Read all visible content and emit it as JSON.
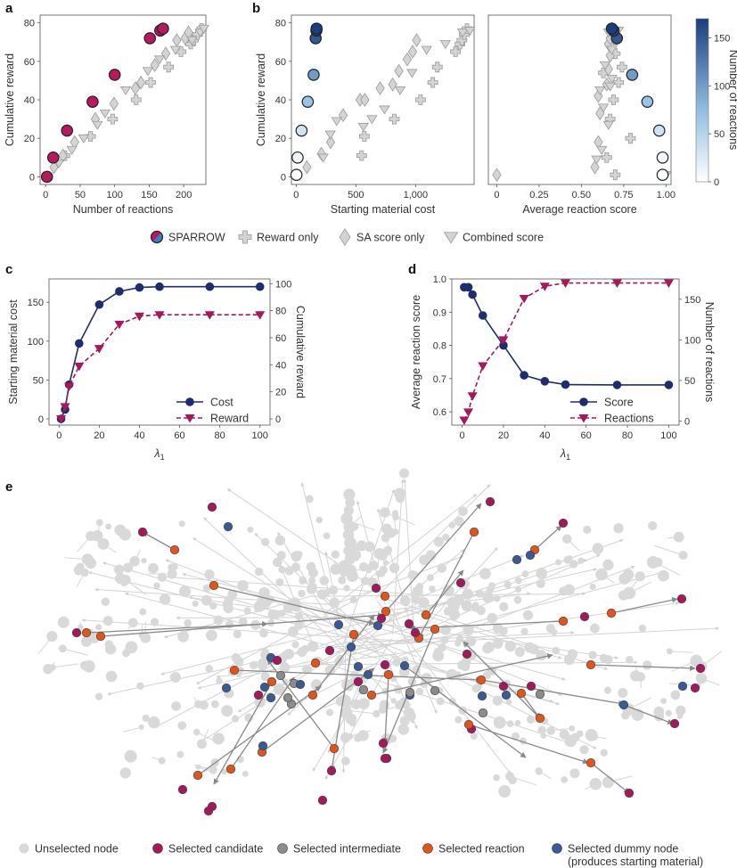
{
  "panel_labels": {
    "a": "a",
    "b": "b",
    "c": "c",
    "d": "d",
    "e": "e"
  },
  "colors": {
    "sparrow": "#b5195e",
    "sparrow_alt": "#2c6fb0",
    "baseline_fill": "#d4d4d4",
    "baseline_edge": "#9a9a9a",
    "navy": "#1e2d6b",
    "magenta": "#a3195b",
    "unselected": "#d9d9d9",
    "candidate": "#a3195b",
    "intermediate": "#8c8c8c",
    "reaction": "#e0541e",
    "dummy": "#3b5a94"
  },
  "legend_top": {
    "sparrow": "SPARROW",
    "reward_only": "Reward only",
    "sa_only": "SA score only",
    "combined": "Combined score"
  },
  "colorbar": {
    "label": "Number of reactions",
    "ticks": [
      "0",
      "50",
      "100",
      "150"
    ],
    "min": 0,
    "max": 170
  },
  "chart_data": [
    {
      "panel": "a",
      "type": "scatter",
      "xlabel": "Number of reactions",
      "ylabel": "Cumulative reward",
      "xlim": [
        -8,
        232
      ],
      "ylim": [
        -4,
        84
      ],
      "xticks": [
        0,
        50,
        100,
        150,
        200
      ],
      "xticklabels": [
        "0",
        "50",
        "100",
        "150",
        "200"
      ],
      "yticks": [
        0,
        20,
        40,
        60,
        80
      ],
      "yticklabels": [
        "0",
        "20",
        "40",
        "60",
        "80"
      ],
      "series": [
        {
          "name": "SPARROW",
          "marker": "circle",
          "points": [
            [
              2,
              0
            ],
            [
              11,
              10
            ],
            [
              31,
              24
            ],
            [
              68,
              39
            ],
            [
              100,
              53
            ],
            [
              151,
              72
            ],
            [
              166,
              76
            ],
            [
              170,
              77
            ]
          ]
        },
        {
          "name": "Reward only",
          "marker": "plus",
          "points": [
            [
              28,
              11
            ],
            [
              65,
              21
            ],
            [
              97,
              30
            ],
            [
              131,
              40
            ],
            [
              152,
              49
            ],
            [
              178,
              57
            ],
            [
              196,
              65
            ],
            [
              210,
              69
            ],
            [
              214,
              71
            ],
            [
              220,
              74
            ],
            [
              226,
              77
            ]
          ]
        },
        {
          "name": "SA score only",
          "marker": "diamond",
          "points": [
            [
              12,
              5
            ],
            [
              25,
              11
            ],
            [
              42,
              18
            ],
            [
              72,
              30
            ],
            [
              99,
              38
            ],
            [
              130,
              46
            ],
            [
              138,
              49
            ],
            [
              158,
              58
            ],
            [
              174,
              64
            ],
            [
              190,
              71
            ],
            [
              202,
              72
            ],
            [
              207,
              75
            ]
          ]
        },
        {
          "name": "Combined score",
          "marker": "triangle",
          "points": [
            [
              19,
              7
            ],
            [
              38,
              14
            ],
            [
              55,
              20
            ],
            [
              75,
              27
            ],
            [
              86,
              33
            ],
            [
              116,
              45
            ],
            [
              148,
              55
            ],
            [
              165,
              61
            ],
            [
              188,
              66
            ],
            [
              212,
              71
            ],
            [
              224,
              75
            ],
            [
              229,
              77
            ]
          ]
        }
      ]
    },
    {
      "panel": "b-left",
      "type": "scatter",
      "xlabel": "Starting material cost",
      "ylabel": "Cumulative reward",
      "xlim": [
        -40,
        1490
      ],
      "ylim": [
        -4,
        84
      ],
      "xticks": [
        0,
        500,
        1000
      ],
      "xticklabels": [
        "0",
        "500",
        "1,000"
      ],
      "yticks": [
        0,
        20,
        40,
        60,
        80
      ],
      "yticklabels": [
        "0",
        "20",
        "40",
        "60",
        "80"
      ],
      "series": [
        {
          "name": "SPARROW",
          "marker": "circle",
          "colored_by": "number of reactions",
          "points": [
            [
              2,
              1,
              2
            ],
            [
              12,
              10,
              11
            ],
            [
              45,
              24,
              31
            ],
            [
              97,
              39,
              68
            ],
            [
              146,
              53,
              100
            ],
            [
              163,
              72,
              151
            ],
            [
              169,
              76,
              166
            ],
            [
              171,
              77,
              170
            ]
          ]
        },
        {
          "name": "Reward only",
          "marker": "plus",
          "points": [
            [
              548,
              11
            ],
            [
              571,
              21
            ],
            [
              822,
              30
            ],
            [
              1041,
              40
            ],
            [
              1144,
              49
            ],
            [
              1182,
              57
            ],
            [
              1334,
              65
            ],
            [
              1372,
              69
            ],
            [
              1388,
              71
            ],
            [
              1408,
              74
            ],
            [
              1430,
              77
            ]
          ]
        },
        {
          "name": "SA score only",
          "marker": "diamond",
          "points": [
            [
              90,
              5
            ],
            [
              211,
              12
            ],
            [
              288,
              18
            ],
            [
              393,
              32
            ],
            [
              535,
              40
            ],
            [
              575,
              40
            ],
            [
              703,
              46
            ],
            [
              808,
              48
            ],
            [
              860,
              55
            ],
            [
              930,
              61
            ],
            [
              975,
              65
            ],
            [
              1009,
              71
            ]
          ]
        },
        {
          "name": "Combined score",
          "marker": "triangle",
          "points": [
            [
              226,
              10
            ],
            [
              286,
              22
            ],
            [
              339,
              29
            ],
            [
              563,
              26
            ],
            [
              634,
              30
            ],
            [
              740,
              35
            ],
            [
              870,
              45
            ],
            [
              970,
              54
            ],
            [
              1092,
              66
            ],
            [
              1250,
              69
            ],
            [
              1394,
              75
            ],
            [
              1455,
              76
            ]
          ]
        }
      ]
    },
    {
      "panel": "b-right",
      "type": "scatter",
      "xlabel": "Average reaction score",
      "ylabel": "",
      "xlim": [
        -0.05,
        1.03
      ],
      "ylim": [
        -4,
        84
      ],
      "xticks": [
        0,
        0.25,
        0.5,
        0.75,
        1.0
      ],
      "xticklabels": [
        "0",
        "0.25",
        "0.50",
        "0.75",
        "1.00"
      ],
      "yticks": [],
      "series": [
        {
          "name": "SPARROW",
          "marker": "circle",
          "colored_by": "number of reactions",
          "points": [
            [
              0.98,
              1,
              2
            ],
            [
              0.98,
              10,
              11
            ],
            [
              0.96,
              24,
              31
            ],
            [
              0.89,
              39,
              68
            ],
            [
              0.8,
              53,
              100
            ],
            [
              0.71,
              72,
              151
            ],
            [
              0.69,
              76,
              166
            ],
            [
              0.68,
              77,
              170
            ]
          ]
        },
        {
          "name": "Reward only",
          "marker": "plus",
          "points": [
            [
              0.7,
              1
            ],
            [
              0.65,
              10
            ],
            [
              0.79,
              20
            ],
            [
              0.67,
              30
            ],
            [
              0.69,
              40
            ],
            [
              0.72,
              49
            ],
            [
              0.63,
              54
            ],
            [
              0.74,
              57
            ],
            [
              0.7,
              64
            ],
            [
              0.7,
              71
            ],
            [
              0.68,
              77
            ]
          ]
        },
        {
          "name": "SA score only",
          "marker": "diamond",
          "points": [
            [
              0,
              1
            ],
            [
              0.58,
              5
            ],
            [
              0.6,
              18
            ],
            [
              0.61,
              33
            ],
            [
              0.6,
              42
            ],
            [
              0.65,
              48
            ],
            [
              0.66,
              56
            ],
            [
              0.67,
              63
            ],
            [
              0.66,
              69
            ],
            [
              0.67,
              72
            ],
            [
              0.7,
              75
            ],
            [
              0.68,
              77
            ]
          ]
        },
        {
          "name": "Combined score",
          "marker": "triangle",
          "points": [
            [
              0.59,
              9
            ],
            [
              0.62,
              14
            ],
            [
              0.66,
              27
            ],
            [
              0.63,
              36
            ],
            [
              0.61,
              45
            ],
            [
              0.67,
              47
            ],
            [
              0.68,
              51
            ],
            [
              0.64,
              58
            ],
            [
              0.68,
              66
            ],
            [
              0.66,
              75
            ],
            [
              0.72,
              76
            ],
            [
              1.0,
              1
            ]
          ]
        }
      ]
    },
    {
      "panel": "c",
      "type": "line",
      "xlabel": "λ1",
      "ylabel_left": "Starting material cost",
      "ylabel_right": "Cumulative reward",
      "xlim": [
        -5,
        105
      ],
      "y_left_lim": [
        -8,
        180
      ],
      "y_right_lim": [
        -4.6,
        103.5
      ],
      "xticks": [
        0,
        20,
        40,
        60,
        80,
        100
      ],
      "xticklabels": [
        "0",
        "20",
        "40",
        "60",
        "80",
        "100"
      ],
      "y_left_ticks": [
        0,
        50,
        100,
        150
      ],
      "y_left_ticklabels": [
        "0",
        "50",
        "100",
        "150"
      ],
      "y_right_ticks": [
        0,
        20,
        40,
        60,
        80,
        100
      ],
      "y_right_ticklabels": [
        "0",
        "20",
        "40",
        "60",
        "80",
        "100"
      ],
      "x": [
        1,
        3,
        5,
        10,
        20,
        30,
        40,
        50,
        75,
        100
      ],
      "series": [
        {
          "name": "Cost",
          "axis": "left",
          "style": "solid-circle",
          "values": [
            0,
            12,
            44,
            97,
            147,
            164,
            169,
            170,
            170,
            170
          ]
        },
        {
          "name": "Reward",
          "axis": "right",
          "style": "dashed-triangle",
          "values": [
            0,
            9,
            24,
            39,
            52,
            70,
            76,
            77,
            77,
            77
          ]
        }
      ]
    },
    {
      "panel": "d",
      "type": "line",
      "xlabel": "λ1",
      "ylabel_left": "Average reaction score",
      "ylabel_right": "Number of reactions",
      "xlim": [
        -5,
        105
      ],
      "y_left_lim": [
        0.56,
        1.0
      ],
      "y_right_lim": [
        -5,
        175
      ],
      "xticks": [
        0,
        20,
        40,
        60,
        80,
        100
      ],
      "xticklabels": [
        "0",
        "20",
        "40",
        "60",
        "80",
        "100"
      ],
      "y_left_ticks": [
        0.6,
        0.7,
        0.8,
        0.9,
        1.0
      ],
      "y_left_ticklabels": [
        "0.6",
        "0.7",
        "0.8",
        "0.9",
        "1.0"
      ],
      "y_right_ticks": [
        0,
        50,
        100,
        150
      ],
      "y_right_ticklabels": [
        "0",
        "50",
        "100",
        "150"
      ],
      "x": [
        1,
        3,
        5,
        10,
        20,
        30,
        40,
        50,
        75,
        100
      ],
      "series": [
        {
          "name": "Score",
          "axis": "left",
          "style": "solid-circle",
          "values": [
            0.975,
            0.975,
            0.953,
            0.89,
            0.8,
            0.71,
            0.692,
            0.682,
            0.681,
            0.681
          ]
        },
        {
          "name": "Reactions",
          "axis": "right",
          "style": "dashed-triangle",
          "values": [
            1,
            11,
            31,
            68,
            100,
            151,
            166,
            170,
            170,
            170
          ]
        }
      ]
    }
  ],
  "network_legend": {
    "unselected": "Unselected node",
    "candidate": "Selected candidate",
    "intermediate": "Selected intermediate",
    "reaction": "Selected reaction",
    "dummy": "Selected dummy node",
    "dummy_note": "(produces starting material)"
  }
}
